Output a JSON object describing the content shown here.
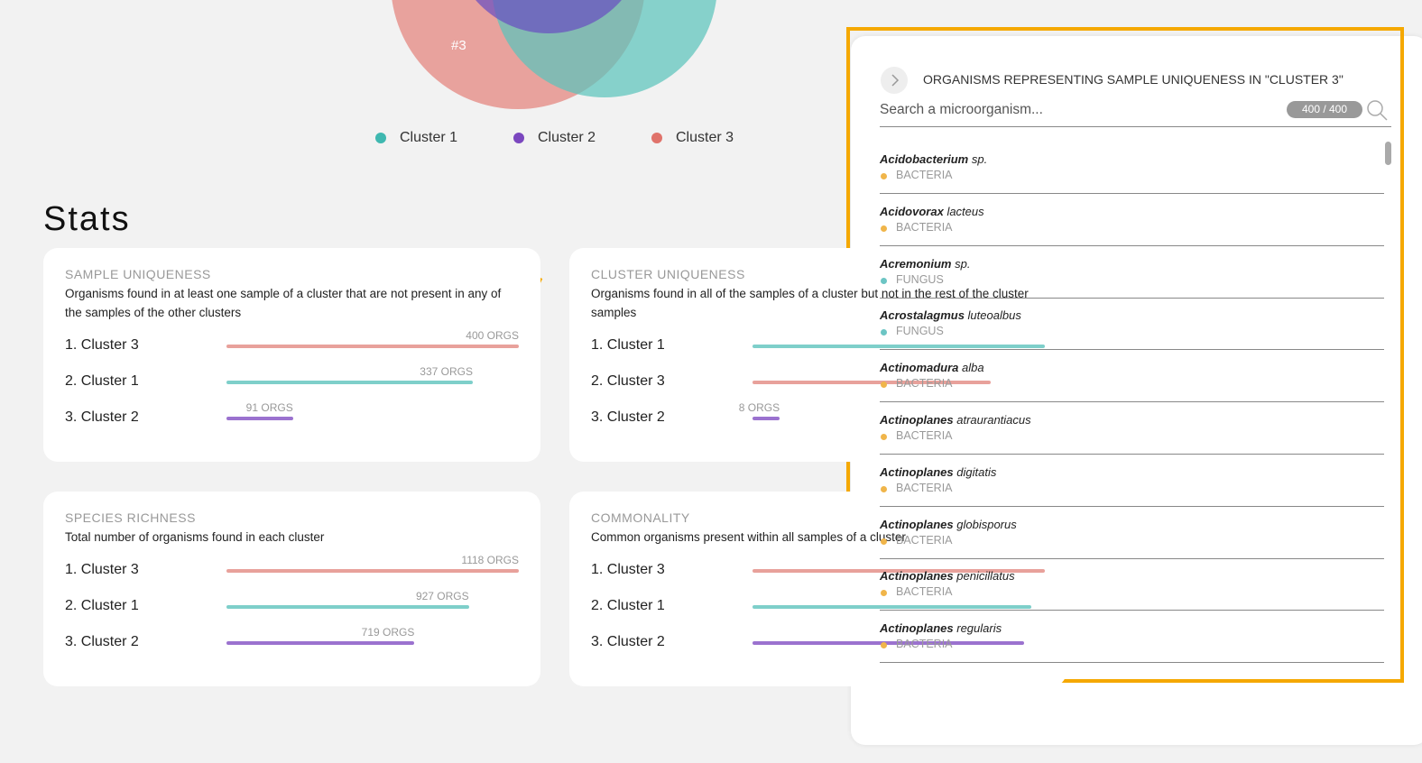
{
  "venn": {
    "label": "#3",
    "legend": [
      {
        "name": "Cluster 1",
        "color": "#3fb8b0"
      },
      {
        "name": "Cluster 2",
        "color": "#7b47bf"
      },
      {
        "name": "Cluster 3",
        "color": "#e0736b"
      }
    ]
  },
  "stats": {
    "title": "Stats",
    "cards": [
      {
        "title": "SAMPLE UNIQUENESS",
        "description": "Organisms found in at least one sample of a cluster that are not present in any of the samples of the other clusters",
        "rows": [
          {
            "label": "1. Cluster 3",
            "value": 400,
            "value_label": "400 ORGS",
            "color": "#e8a19b"
          },
          {
            "label": "2. Cluster 1",
            "value": 337,
            "value_label": "337 ORGS",
            "color": "#7ecfca"
          },
          {
            "label": "3. Cluster 2",
            "value": 91,
            "value_label": "91 ORGS",
            "color": "#9b72cf"
          }
        ]
      },
      {
        "title": "CLUSTER UNIQUENESS",
        "description": "Organisms found in all of the samples of a cluster but not in the rest of the cluster samples",
        "rows": [
          {
            "label": "1. Cluster 1",
            "value": 86,
            "color": "#7ecfca"
          },
          {
            "label": "2. Cluster 3",
            "value": 70,
            "color": "#e8a19b"
          },
          {
            "label": "3. Cluster 2",
            "value": 8,
            "value_label": "8 ORGS",
            "color": "#9b72cf"
          }
        ]
      },
      {
        "title": "SPECIES RICHNESS",
        "description": "Total number of organisms found in each cluster",
        "rows": [
          {
            "label": "1. Cluster 3",
            "value": 1118,
            "value_label": "1118 ORGS",
            "color": "#e8a19b"
          },
          {
            "label": "2. Cluster 1",
            "value": 927,
            "value_label": "927 ORGS",
            "color": "#7ecfca"
          },
          {
            "label": "3. Cluster 2",
            "value": 719,
            "value_label": "719 ORGS",
            "color": "#9b72cf"
          }
        ]
      },
      {
        "title": "COMMONALITY",
        "description": "Common organisms present within all samples of a cluster",
        "rows": [
          {
            "label": "1. Cluster 3",
            "value": 43,
            "color": "#e8a19b"
          },
          {
            "label": "2. Cluster 1",
            "value": 41,
            "color": "#7ecfca"
          },
          {
            "label": "3. Cluster 2",
            "value": 40,
            "color": "#9b72cf"
          }
        ]
      }
    ]
  },
  "panel": {
    "title": "ORGANISMS REPRESENTING SAMPLE UNIQUENESS IN \"CLUSTER 3\"",
    "search_placeholder": "Search a microorganism...",
    "count": "400 / 400",
    "kingdom_colors": {
      "BACTERIA": "#f0b54a",
      "FUNGUS": "#6cc5c4"
    },
    "organisms": [
      {
        "genus": "Acidobacterium",
        "species": "sp.",
        "kingdom": "BACTERIA"
      },
      {
        "genus": "Acidovorax",
        "species": "lacteus",
        "kingdom": "BACTERIA"
      },
      {
        "genus": "Acremonium",
        "species": "sp.",
        "kingdom": "FUNGUS"
      },
      {
        "genus": "Acrostalagmus",
        "species": "luteoalbus",
        "kingdom": "FUNGUS"
      },
      {
        "genus": "Actinomadura",
        "species": "alba",
        "kingdom": "BACTERIA"
      },
      {
        "genus": "Actinoplanes",
        "species": "atraurantiacus",
        "kingdom": "BACTERIA"
      },
      {
        "genus": "Actinoplanes",
        "species": "digitatis",
        "kingdom": "BACTERIA"
      },
      {
        "genus": "Actinoplanes",
        "species": "globisporus",
        "kingdom": "BACTERIA"
      },
      {
        "genus": "Actinoplanes",
        "species": "penicillatus",
        "kingdom": "BACTERIA"
      },
      {
        "genus": "Actinoplanes",
        "species": "regularis",
        "kingdom": "BACTERIA"
      }
    ]
  }
}
